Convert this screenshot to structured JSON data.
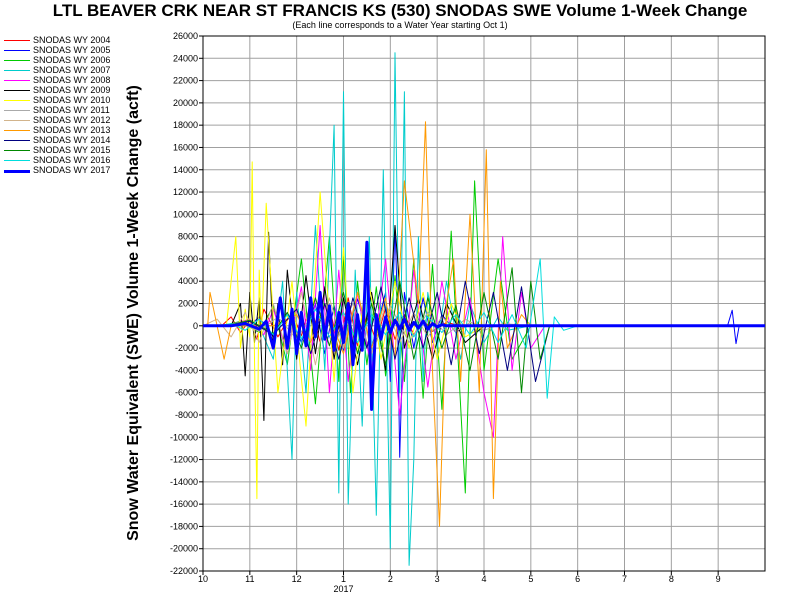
{
  "header": {
    "title": "LTL BEAVER CRK NEAR ST FRANCIS KS (530) SNODAS SWE Volume 1-Week Change",
    "subtitle": "(Each line corresponds to a Water Year starting Oct 1)"
  },
  "chart_data": {
    "type": "line",
    "title": "LTL BEAVER CRK NEAR ST FRANCIS KS (530) SNODAS SWE Volume 1-Week Change",
    "subtitle": "(Each line corresponds to a Water Year starting Oct 1)",
    "ylabel": "Snow Water Equivalent (SWE) Volume 1-Week Change (acft)",
    "xlabel": "",
    "ylim": [
      -22000,
      26000
    ],
    "yticks": [
      26000,
      24000,
      22000,
      20000,
      18000,
      16000,
      14000,
      12000,
      10000,
      8000,
      6000,
      4000,
      2000,
      0,
      -2000,
      -4000,
      -6000,
      -8000,
      -10000,
      -12000,
      -14000,
      -16000,
      -18000,
      -20000,
      -22000
    ],
    "xlim": [
      0,
      12
    ],
    "xticks": [
      {
        "pos": 0,
        "label": "10"
      },
      {
        "pos": 1,
        "label": "11"
      },
      {
        "pos": 2,
        "label": "12"
      },
      {
        "pos": 3,
        "label": "1"
      },
      {
        "pos": 4,
        "label": "2"
      },
      {
        "pos": 5,
        "label": "3"
      },
      {
        "pos": 6,
        "label": "4"
      },
      {
        "pos": 7,
        "label": "5"
      },
      {
        "pos": 8,
        "label": "6"
      },
      {
        "pos": 9,
        "label": "7"
      },
      {
        "pos": 10,
        "label": "8"
      },
      {
        "pos": 11,
        "label": "9"
      }
    ],
    "year_label": {
      "pos": 3,
      "label": "2017"
    },
    "grid": true,
    "legend_position": "left",
    "series": [
      {
        "name": "SNODAS WY 2004",
        "color": "#ff0000",
        "width": 1,
        "x": [
          0,
          0.2,
          0.4,
          0.6,
          0.8,
          1.0,
          1.15,
          1.3,
          1.6,
          1.9,
          2.1,
          2.3,
          2.5,
          2.7,
          2.9,
          3.1,
          3.3,
          3.5,
          3.7,
          3.9,
          4.1,
          4.3,
          4.5,
          4.7,
          4.9,
          5.2,
          5.5,
          12
        ],
        "y": [
          0,
          0,
          0,
          800,
          -600,
          500,
          -1200,
          1500,
          -1000,
          1200,
          -900,
          2000,
          -1500,
          1800,
          -2200,
          2500,
          -1800,
          1000,
          -1400,
          1600,
          -1200,
          1000,
          -800,
          600,
          -500,
          300,
          0,
          0
        ]
      },
      {
        "name": "SNODAS WY 2005",
        "color": "#0000ff",
        "width": 1,
        "x": [
          0,
          0.5,
          1.0,
          1.2,
          1.5,
          1.8,
          2.1,
          2.4,
          2.6,
          2.8,
          3.0,
          3.3,
          3.6,
          3.9,
          4.0,
          4.1,
          4.15,
          4.2,
          4.3,
          4.5,
          4.7,
          4.9,
          5.1,
          5.4,
          5.7,
          6.0,
          7.0,
          8.0,
          9.0,
          10.0,
          11.2,
          11.3,
          11.38,
          11.45,
          11.6,
          12
        ],
        "y": [
          0,
          0,
          0,
          800,
          -1000,
          1200,
          -1500,
          2000,
          -2500,
          1800,
          -2200,
          2400,
          -2000,
          3000,
          -5000,
          9000,
          2000,
          -11800,
          3000,
          -2000,
          2500,
          -1500,
          1000,
          -600,
          300,
          0,
          0,
          0,
          0,
          0,
          0,
          1400,
          -1600,
          0,
          0,
          0
        ]
      },
      {
        "name": "SNODAS WY 2006",
        "color": "#00cc00",
        "width": 1,
        "x": [
          0,
          0.4,
          0.8,
          1.2,
          1.5,
          1.8,
          2.1,
          2.4,
          2.7,
          2.9,
          3.0,
          3.15,
          3.3,
          3.5,
          3.7,
          3.9,
          4.1,
          4.3,
          4.5,
          4.7,
          4.9,
          5.1,
          5.3,
          5.6,
          5.8,
          6.0,
          6.3,
          6.6,
          7.0,
          12
        ],
        "y": [
          0,
          0,
          400,
          -600,
          1800,
          -3500,
          6000,
          -7000,
          8000,
          -5000,
          6500,
          -6000,
          4000,
          -3500,
          3500,
          -4500,
          4500,
          -5000,
          6000,
          -6500,
          5500,
          -7500,
          8500,
          -15000,
          13000,
          -4000,
          6000,
          -3000,
          0,
          0
        ]
      },
      {
        "name": "SNODAS WY 2007",
        "color": "#00cccc",
        "width": 1,
        "x": [
          0,
          1.2,
          1.5,
          1.7,
          1.9,
          2.0,
          2.2,
          2.4,
          2.6,
          2.8,
          2.9,
          3.0,
          3.1,
          3.25,
          3.4,
          3.55,
          3.7,
          3.85,
          4.0,
          4.1,
          4.2,
          4.3,
          4.4,
          4.5,
          4.6,
          4.7,
          4.8,
          5.0,
          5.2,
          5.5,
          5.7,
          6.0,
          6.3,
          6.5,
          7.0,
          12
        ],
        "y": [
          0,
          0,
          -3000,
          4000,
          -12000,
          3000,
          -6000,
          9000,
          -4000,
          18000,
          -15000,
          21000,
          -16000,
          5000,
          -9000,
          8000,
          -17000,
          14000,
          -20000,
          24500,
          -6000,
          21000,
          -21500,
          -12000,
          8000,
          -5000,
          3000,
          -2000,
          4000,
          -3000,
          2000,
          -1500,
          800,
          -400,
          0,
          0
        ]
      },
      {
        "name": "SNODAS WY 2008",
        "color": "#ff00ff",
        "width": 1,
        "x": [
          0,
          0.5,
          1.0,
          1.3,
          1.5,
          1.8,
          2.1,
          2.3,
          2.5,
          2.7,
          2.9,
          3.1,
          3.3,
          3.6,
          3.9,
          4.2,
          4.5,
          4.8,
          5.1,
          5.4,
          5.7,
          6.0,
          6.2,
          6.4,
          6.6,
          6.8,
          7.0,
          7.3,
          12
        ],
        "y": [
          0,
          0,
          600,
          -800,
          1500,
          -2500,
          3500,
          -4000,
          9000,
          -6000,
          5000,
          -5000,
          3000,
          -4000,
          6000,
          -8000,
          5000,
          -5500,
          4000,
          -3000,
          2500,
          -6000,
          -10000,
          8000,
          -4000,
          3000,
          -2000,
          0,
          0
        ]
      },
      {
        "name": "SNODAS WY 2009",
        "color": "#000000",
        "width": 1,
        "x": [
          0,
          0.6,
          0.8,
          0.9,
          1.0,
          1.1,
          1.2,
          1.3,
          1.4,
          1.5,
          1.6,
          1.7,
          1.8,
          2.0,
          2.2,
          2.4,
          2.6,
          2.8,
          3.0,
          3.3,
          3.6,
          3.9,
          4.1,
          4.3,
          4.6,
          4.9,
          5.2,
          5.6,
          6.0,
          12
        ],
        "y": [
          0,
          0,
          2000,
          -4500,
          3000,
          -1500,
          2500,
          -8500,
          8400,
          -2000,
          2000,
          -3500,
          5000,
          -3000,
          4500,
          -2500,
          3500,
          -3000,
          2500,
          -3500,
          3000,
          -4000,
          9000,
          -2000,
          2500,
          -3000,
          2000,
          -1500,
          0,
          0
        ]
      },
      {
        "name": "SNODAS WY 2010",
        "color": "#ffff00",
        "width": 1,
        "x": [
          0,
          0.5,
          0.7,
          0.8,
          0.9,
          1.0,
          1.05,
          1.1,
          1.15,
          1.2,
          1.25,
          1.35,
          1.6,
          1.9,
          2.2,
          2.5,
          2.8,
          3.0,
          3.2,
          3.5,
          3.8,
          4.1,
          4.4,
          4.7,
          5.0,
          5.3,
          5.6,
          6.0,
          12
        ],
        "y": [
          0,
          0,
          8000,
          -2000,
          1500,
          -1000,
          14700,
          -3000,
          -15500,
          5000,
          -1000,
          11000,
          -6000,
          4000,
          -9000,
          12000,
          -5000,
          7000,
          -6000,
          5000,
          -3000,
          4000,
          -2000,
          3000,
          -3000,
          2000,
          -1000,
          0,
          0
        ]
      },
      {
        "name": "SNODAS WY 2011",
        "color": "#aaaaaa",
        "width": 1,
        "x": [
          0,
          0.4,
          0.8,
          1.2,
          1.6,
          2.0,
          2.4,
          2.8,
          3.2,
          3.6,
          4.0,
          4.4,
          4.8,
          5.2,
          5.6,
          6.0,
          6.4,
          7.0,
          12
        ],
        "y": [
          0,
          0,
          300,
          -500,
          800,
          -1200,
          1500,
          -1800,
          2000,
          -2500,
          1800,
          -1500,
          1200,
          -800,
          600,
          -400,
          200,
          0,
          0
        ]
      },
      {
        "name": "SNODAS WY 2012",
        "color": "#d2b48c",
        "width": 1,
        "x": [
          0,
          0.3,
          0.6,
          0.9,
          1.2,
          1.5,
          1.8,
          2.1,
          2.4,
          2.7,
          3.0,
          3.3,
          3.6,
          3.9,
          4.2,
          4.5,
          4.8,
          5.1,
          5.4,
          5.7,
          6.0,
          12
        ],
        "y": [
          0,
          600,
          -1000,
          1200,
          -1500,
          2000,
          -2500,
          3000,
          -3500,
          2500,
          -2000,
          3000,
          -2500,
          2000,
          -1500,
          1200,
          -1000,
          800,
          -500,
          300,
          0,
          0
        ]
      },
      {
        "name": "SNODAS WY 2013",
        "color": "#ff9900",
        "width": 1,
        "x": [
          0,
          0.1,
          0.15,
          0.3,
          0.45,
          0.6,
          1.5,
          2.0,
          2.3,
          2.6,
          3.0,
          3.3,
          3.6,
          3.9,
          4.1,
          4.3,
          4.6,
          4.75,
          4.9,
          5.05,
          5.2,
          5.35,
          5.5,
          5.7,
          5.9,
          6.05,
          6.2,
          6.35,
          6.5,
          6.8,
          7.0,
          12
        ],
        "y": [
          0,
          0,
          3000,
          0,
          -3000,
          0,
          0,
          1000,
          -1500,
          2000,
          -2500,
          3000,
          -2000,
          2500,
          -3000,
          13000,
          2000,
          18300,
          -4000,
          -18000,
          2000,
          6000,
          -5000,
          10000,
          -6000,
          15800,
          -15500,
          4000,
          -2000,
          1000,
          0,
          0
        ]
      },
      {
        "name": "SNODAS WY 2014",
        "color": "#000080",
        "width": 1,
        "x": [
          0,
          0.5,
          1.0,
          1.5,
          2.0,
          2.3,
          2.6,
          2.9,
          3.2,
          3.5,
          3.8,
          4.1,
          4.4,
          4.7,
          5.0,
          5.3,
          5.6,
          5.9,
          6.2,
          6.5,
          6.8,
          7.1,
          7.4,
          12
        ],
        "y": [
          0,
          0,
          400,
          -800,
          1500,
          -2500,
          2000,
          -3000,
          2500,
          -2000,
          3500,
          -3000,
          2500,
          -2000,
          3000,
          -3500,
          4000,
          -2500,
          3000,
          -4000,
          3500,
          -5000,
          0,
          0
        ]
      },
      {
        "name": "SNODAS WY 2015",
        "color": "#008800",
        "width": 1,
        "x": [
          0,
          0.5,
          1.0,
          1.5,
          1.8,
          2.1,
          2.4,
          2.7,
          3.0,
          3.3,
          3.6,
          3.9,
          4.2,
          4.5,
          4.8,
          5.1,
          5.4,
          5.7,
          6.0,
          6.3,
          6.6,
          6.8,
          7.0,
          7.2,
          7.4,
          12
        ],
        "y": [
          0,
          0,
          500,
          -700,
          1200,
          -2000,
          2500,
          -1800,
          3000,
          -2500,
          2000,
          -3500,
          4000,
          -3000,
          2500,
          -2000,
          1800,
          -4000,
          3000,
          -3000,
          5200,
          -6000,
          4000,
          -3000,
          0,
          0
        ]
      },
      {
        "name": "SNODAS WY 2016",
        "color": "#00dddd",
        "width": 1,
        "x": [
          0,
          0.3,
          0.6,
          0.9,
          1.2,
          1.5,
          1.8,
          2.1,
          2.4,
          2.7,
          3.0,
          3.3,
          3.6,
          3.9,
          4.2,
          4.5,
          4.8,
          5.1,
          5.4,
          5.7,
          6.0,
          6.3,
          6.6,
          6.9,
          7.2,
          7.35,
          7.5,
          7.7,
          8.0,
          12
        ],
        "y": [
          0,
          0,
          200,
          -400,
          600,
          -800,
          1000,
          -1200,
          1500,
          -1000,
          1200,
          -1500,
          1000,
          -800,
          1200,
          -1000,
          800,
          -600,
          1000,
          -800,
          1200,
          -1500,
          1000,
          -2000,
          6000,
          -6500,
          800,
          -400,
          0,
          0
        ]
      },
      {
        "name": "SNODAS WY 2017",
        "color": "#0000ff",
        "width": 3,
        "x": [
          0,
          0.6,
          0.9,
          1.2,
          1.35,
          1.5,
          1.65,
          1.8,
          1.9,
          2.0,
          2.1,
          2.2,
          2.3,
          2.4,
          2.5,
          2.6,
          2.7,
          2.8,
          2.9,
          3.0,
          3.1,
          3.2,
          3.3,
          3.4,
          3.5,
          3.6,
          3.7,
          3.8,
          3.9,
          4.0,
          4.1,
          4.2,
          4.3,
          4.4,
          4.5,
          4.6,
          4.7,
          4.8,
          4.9,
          5.0,
          5.1,
          5.2,
          5.3,
          5.4,
          5.6,
          5.9,
          12
        ],
        "y": [
          0,
          0,
          200,
          -300,
          400,
          -2000,
          2500,
          -2000,
          1500,
          -2500,
          1200,
          -1800,
          2500,
          -1000,
          3000,
          -1200,
          1800,
          -2200,
          1200,
          -1500,
          2000,
          -3500,
          1000,
          -2200,
          7500,
          -7500,
          1000,
          -1200,
          800,
          -600,
          500,
          -300,
          600,
          -400,
          300,
          -200,
          400,
          -300,
          200,
          -100,
          100,
          0,
          0,
          0,
          0,
          0,
          0
        ]
      }
    ]
  }
}
